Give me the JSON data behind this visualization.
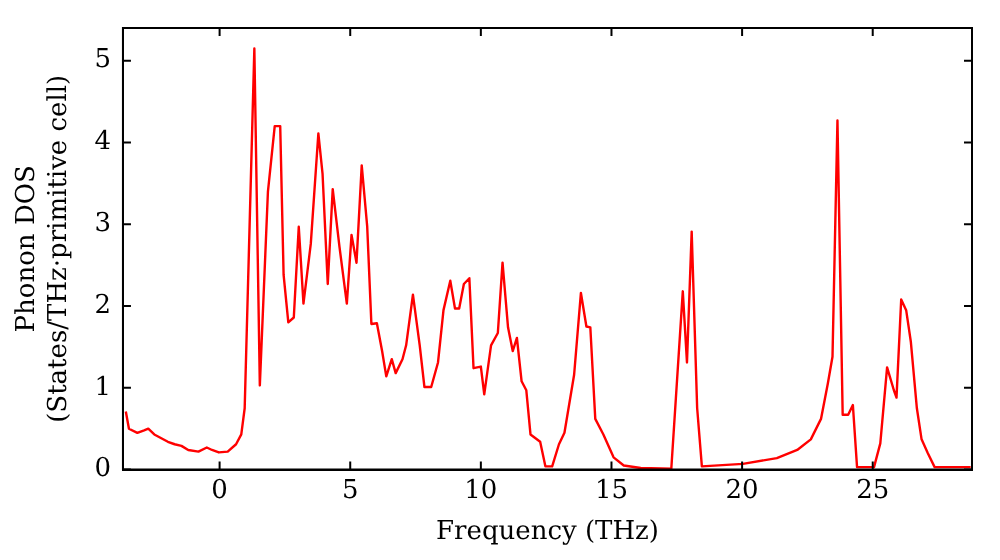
{
  "chart_data": {
    "type": "line",
    "xlabel": "Frequency (THz)",
    "ylabel": "Phonon DOS\n(States/THz·primitive cell)",
    "xlim": [
      -3.7,
      28.8
    ],
    "ylim": [
      0,
      5.4
    ],
    "xticks": [
      0,
      5,
      10,
      15,
      20,
      25
    ],
    "yticks": [
      0,
      1,
      2,
      3,
      4,
      5
    ],
    "grid": false,
    "legend": false,
    "marker": "none",
    "line_style": "solid",
    "series": [
      {
        "color": "#ff0000",
        "x": [
          -3.59,
          -3.47,
          -3.15,
          -2.89,
          -2.73,
          -2.5,
          -1.98,
          -1.72,
          -1.46,
          -1.2,
          -0.81,
          -0.49,
          -0.29,
          -0.03,
          0.31,
          0.63,
          0.83,
          0.96,
          1.09,
          1.33,
          1.54,
          1.85,
          2.11,
          2.32,
          2.45,
          2.63,
          2.84,
          3.03,
          3.21,
          3.49,
          3.78,
          3.94,
          4.14,
          4.33,
          4.59,
          4.87,
          5.05,
          5.24,
          5.44,
          5.65,
          5.81,
          6.02,
          6.22,
          6.38,
          6.59,
          6.74,
          7.0,
          7.14,
          7.4,
          7.66,
          7.84,
          8.1,
          8.36,
          8.57,
          8.83,
          9.01,
          9.17,
          9.35,
          9.56,
          9.72,
          10.0,
          10.13,
          10.39,
          10.65,
          10.83,
          11.04,
          11.22,
          11.38,
          11.56,
          11.74,
          11.9,
          12.27,
          12.47,
          12.73,
          12.99,
          13.2,
          13.57,
          13.83,
          14.04,
          14.19,
          14.38,
          14.69,
          15.08,
          15.47,
          16.12,
          17.29,
          17.73,
          17.89,
          18.07,
          18.28,
          18.46,
          20.03,
          21.33,
          22.11,
          22.63,
          23.02,
          23.28,
          23.46,
          23.65,
          23.85,
          24.06,
          24.24,
          24.4,
          25.05,
          25.29,
          25.55,
          25.81,
          25.91,
          26.09,
          26.28,
          26.46,
          26.69,
          26.87,
          27.11,
          27.37,
          28.75
        ],
        "values": [
          0.71,
          0.5,
          0.45,
          0.48,
          0.5,
          0.43,
          0.34,
          0.31,
          0.29,
          0.24,
          0.22,
          0.27,
          0.24,
          0.21,
          0.22,
          0.31,
          0.43,
          0.75,
          2.29,
          5.15,
          1.03,
          3.4,
          4.2,
          4.2,
          2.38,
          1.8,
          1.86,
          2.97,
          2.03,
          2.76,
          4.11,
          3.62,
          2.27,
          3.43,
          2.72,
          2.03,
          2.87,
          2.53,
          3.72,
          2.97,
          1.78,
          1.79,
          1.45,
          1.14,
          1.35,
          1.18,
          1.35,
          1.52,
          2.14,
          1.52,
          1.01,
          1.01,
          1.31,
          1.95,
          2.31,
          1.97,
          1.97,
          2.27,
          2.34,
          1.24,
          1.26,
          0.92,
          1.52,
          1.67,
          2.53,
          1.74,
          1.45,
          1.61,
          1.08,
          0.97,
          0.43,
          0.34,
          0.04,
          0.04,
          0.31,
          0.45,
          1.16,
          2.16,
          1.75,
          1.74,
          0.62,
          0.43,
          0.15,
          0.05,
          0.02,
          0.01,
          2.18,
          1.31,
          2.91,
          0.75,
          0.04,
          0.07,
          0.14,
          0.24,
          0.37,
          0.62,
          1.05,
          1.38,
          4.27,
          0.67,
          0.67,
          0.79,
          0.03,
          0.03,
          0.32,
          1.25,
          0.97,
          0.88,
          2.08,
          1.95,
          1.56,
          0.75,
          0.37,
          0.2,
          0.03,
          0.03
        ]
      }
    ]
  }
}
